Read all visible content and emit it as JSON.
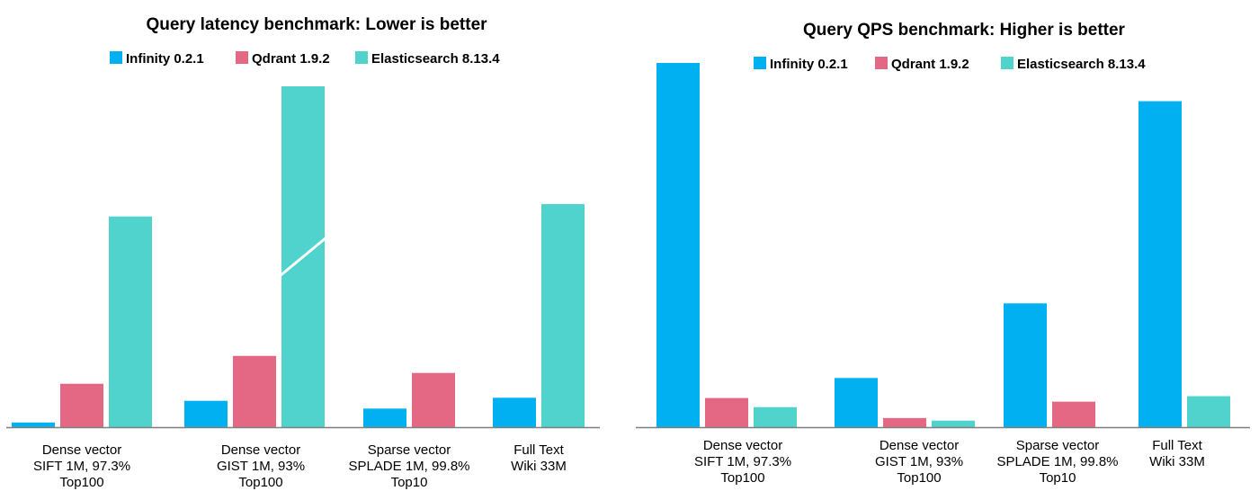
{
  "chart_data": [
    {
      "type": "bar",
      "title": "Query latency benchmark: Lower is better",
      "legend_position": "top",
      "categories": [
        [
          "Dense vector",
          "SIFT 1M, 97.3%",
          "Top100"
        ],
        [
          "Dense vector",
          "GIST 1M, 93%",
          "Top100"
        ],
        [
          "Sparse vector",
          "SPLADE 1M, 99.8%",
          "Top10"
        ],
        [
          "Full Text",
          "Wiki 33M"
        ]
      ],
      "series": [
        {
          "name": "Infinity 0.2.1",
          "color": "#00b0f0",
          "values": [
            1.5,
            8.5,
            6.0,
            9.5
          ]
        },
        {
          "name": "Qdrant 1.9.2",
          "color": "#e46884",
          "values": [
            14.0,
            23.0,
            17.5,
            null
          ]
        },
        {
          "name": "Elasticsearch 8.13.4",
          "color": "#4fd3cc",
          "values": [
            68.0,
            110.0,
            null,
            72.0
          ]
        }
      ],
      "axis_break": {
        "category_index": 1,
        "series_index": 2
      },
      "ylim": [
        0,
        110
      ],
      "grid": false
    },
    {
      "type": "bar",
      "title": "Query QPS benchmark: Higher is better",
      "legend_position": "top",
      "categories": [
        [
          "Dense vector",
          "SIFT 1M, 97.3%",
          "Top100"
        ],
        [
          "Dense vector",
          "GIST 1M, 93%",
          "Top100"
        ],
        [
          "Sparse vector",
          "SPLADE 1M, 99.8%",
          "Top10"
        ],
        [
          "Full Text",
          "Wiki 33M"
        ]
      ],
      "series": [
        {
          "name": "Infinity 0.2.1",
          "color": "#00b0f0",
          "values": [
            100.0,
            13.5,
            34.0,
            89.5
          ]
        },
        {
          "name": "Qdrant 1.9.2",
          "color": "#e46884",
          "values": [
            8.0,
            2.5,
            7.0,
            null
          ]
        },
        {
          "name": "Elasticsearch 8.13.4",
          "color": "#4fd3cc",
          "values": [
            5.5,
            1.8,
            null,
            8.5
          ]
        }
      ],
      "ylim": [
        0,
        100
      ],
      "grid": false
    }
  ]
}
